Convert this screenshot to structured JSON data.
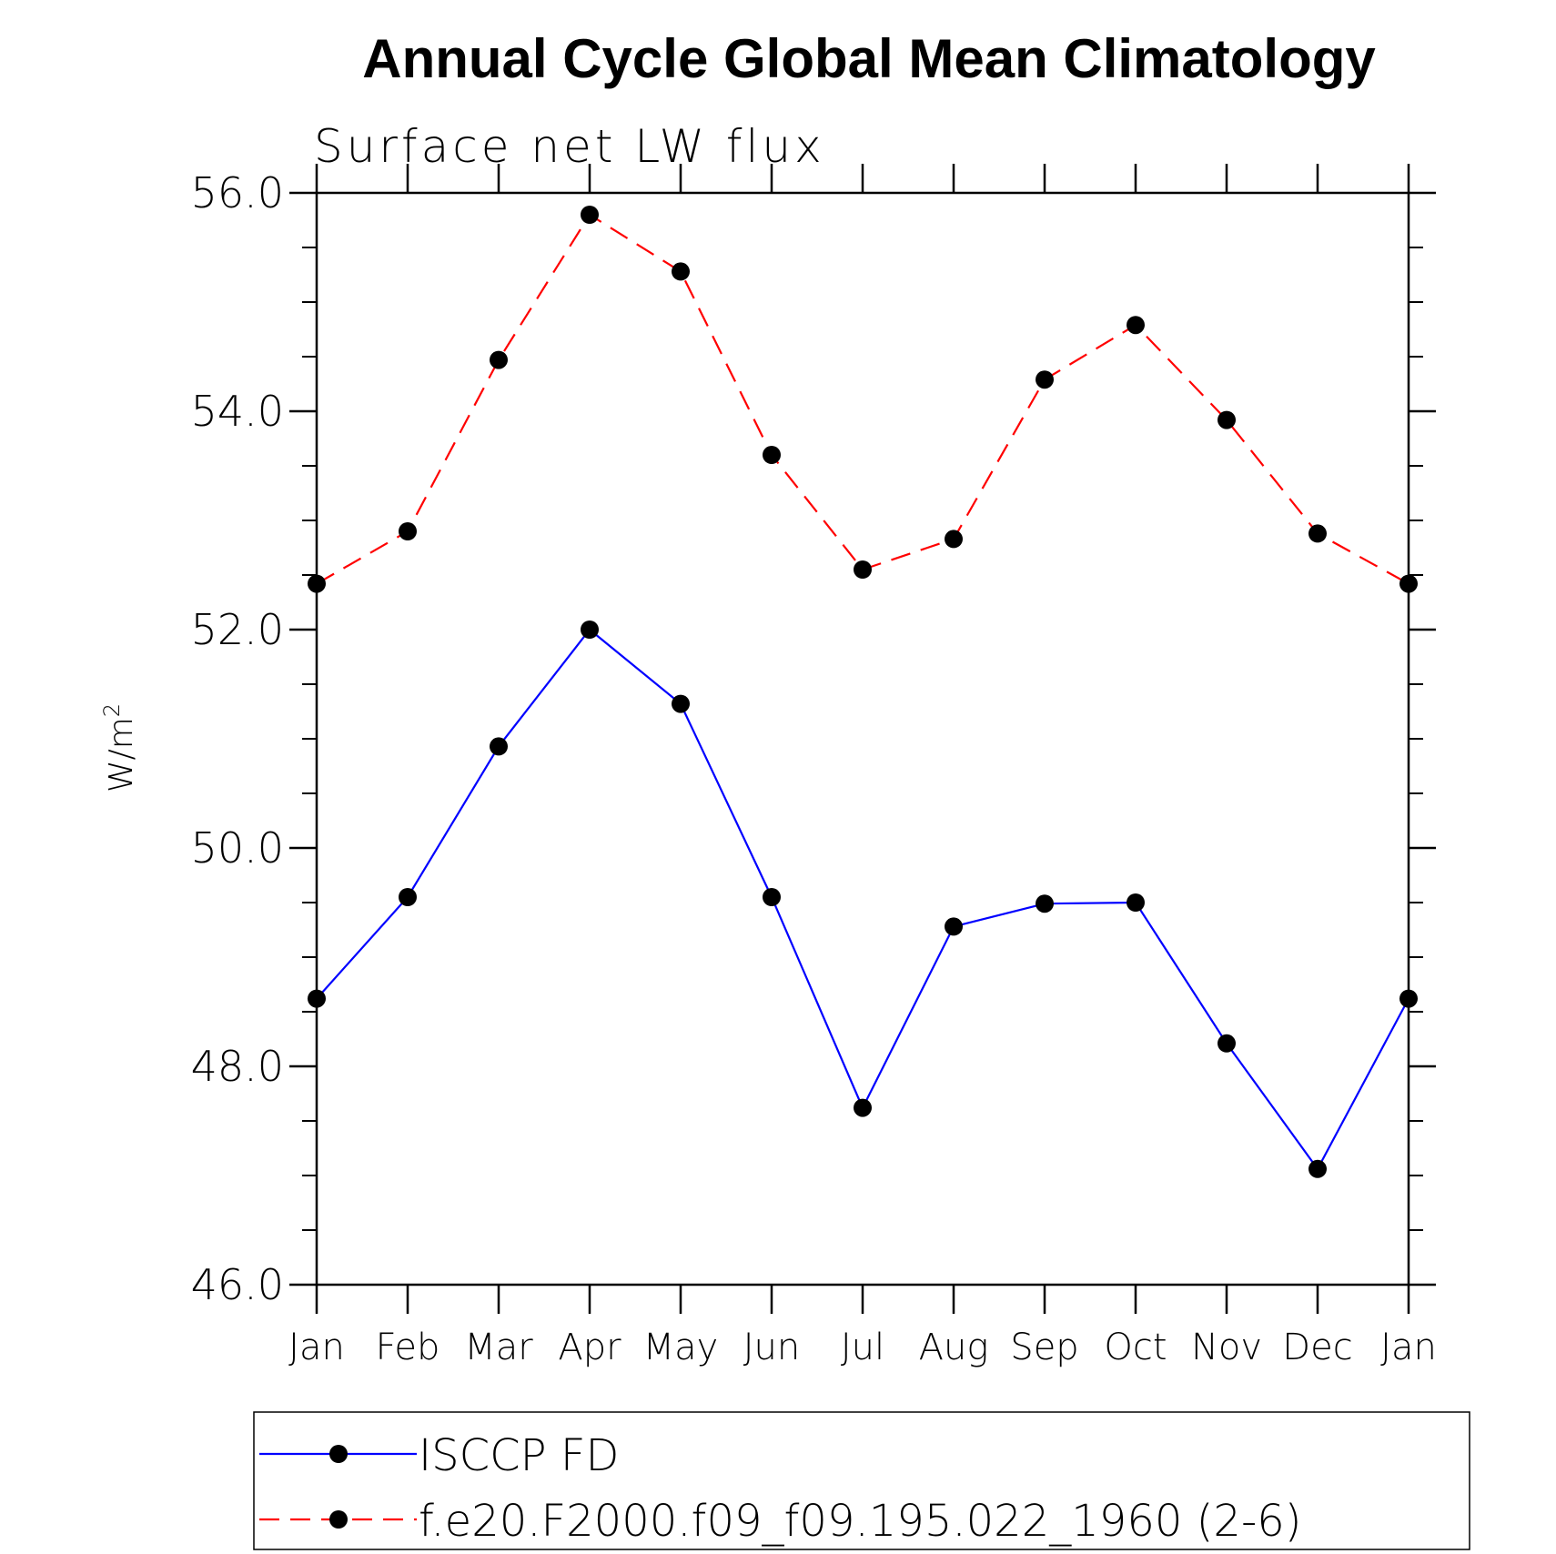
{
  "chart_data": {
    "type": "line",
    "title": "Annual Cycle Global Mean Climatology",
    "subtitle": "Surface net LW flux",
    "xlabel": "",
    "ylabel": "W/m",
    "ylabel_superscript": "2",
    "categories": [
      "Jan",
      "Feb",
      "Mar",
      "Apr",
      "May",
      "Jun",
      "Jul",
      "Aug",
      "Sep",
      "Oct",
      "Nov",
      "Dec",
      "Jan"
    ],
    "ylim": [
      46.0,
      56.0
    ],
    "y_ticks": [
      46.0,
      48.0,
      50.0,
      52.0,
      54.0,
      56.0
    ],
    "y_tick_labels": [
      "46.0",
      "48.0",
      "50.0",
      "52.0",
      "54.0",
      "56.0"
    ],
    "y_minor_step": 0.5,
    "grid": false,
    "legend_position": "bottom",
    "series": [
      {
        "name": "ISCCP FD",
        "color": "#0000ff",
        "line_style": "solid",
        "marker": "filled-circle",
        "values": [
          48.62,
          49.55,
          50.93,
          52.0,
          51.32,
          49.55,
          47.62,
          49.28,
          49.49,
          49.5,
          48.21,
          47.06,
          48.62
        ]
      },
      {
        "name": "f.e20.F2000.f09_f09.195.022_1960 (2-6)",
        "color": "#ff0000",
        "line_style": "dashed",
        "marker": "filled-circle",
        "values": [
          52.42,
          52.9,
          54.47,
          55.8,
          55.28,
          53.6,
          52.55,
          52.83,
          54.29,
          54.79,
          53.92,
          52.88,
          52.42
        ]
      }
    ]
  }
}
